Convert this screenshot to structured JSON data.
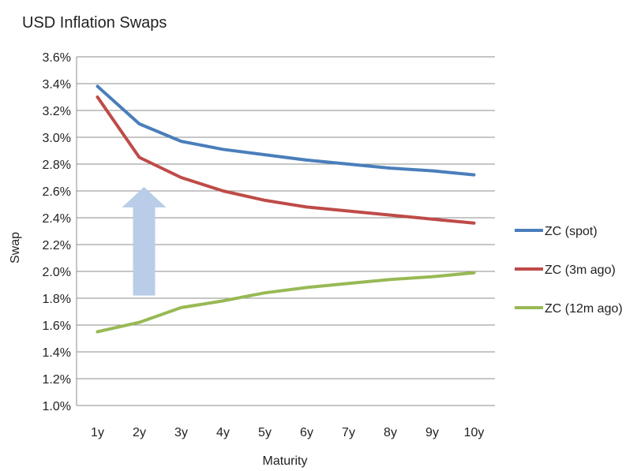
{
  "chart_data": {
    "type": "line",
    "title": "USD Inflation Swaps",
    "xlabel": "Maturity",
    "ylabel": "Swap",
    "categories": [
      "1y",
      "2y",
      "3y",
      "4y",
      "5y",
      "6y",
      "7y",
      "8y",
      "9y",
      "10y"
    ],
    "yticks": [
      "1.0%",
      "1.2%",
      "1.4%",
      "1.6%",
      "1.8%",
      "2.0%",
      "2.2%",
      "2.4%",
      "2.6%",
      "2.8%",
      "3.0%",
      "3.2%",
      "3.4%",
      "3.6%"
    ],
    "ylim": [
      1.0,
      3.6
    ],
    "grid": true,
    "legend_position": "right",
    "series": [
      {
        "name": "ZC (spot)",
        "color": "#4a7ebb",
        "values": [
          3.38,
          3.1,
          2.97,
          2.91,
          2.87,
          2.83,
          2.8,
          2.77,
          2.75,
          2.72
        ]
      },
      {
        "name": "ZC (3m ago)",
        "color": "#be4b48",
        "values": [
          3.3,
          2.85,
          2.7,
          2.6,
          2.53,
          2.48,
          2.45,
          2.42,
          2.39,
          2.36
        ]
      },
      {
        "name": "ZC (12m ago)",
        "color": "#98b954",
        "values": [
          1.55,
          1.62,
          1.73,
          1.78,
          1.84,
          1.88,
          1.91,
          1.94,
          1.96,
          1.99
        ]
      }
    ],
    "annotation": {
      "type": "arrow-up",
      "color": "#b9cde8",
      "at_category": "2y",
      "from_value": 1.82,
      "to_value": 2.63
    }
  }
}
